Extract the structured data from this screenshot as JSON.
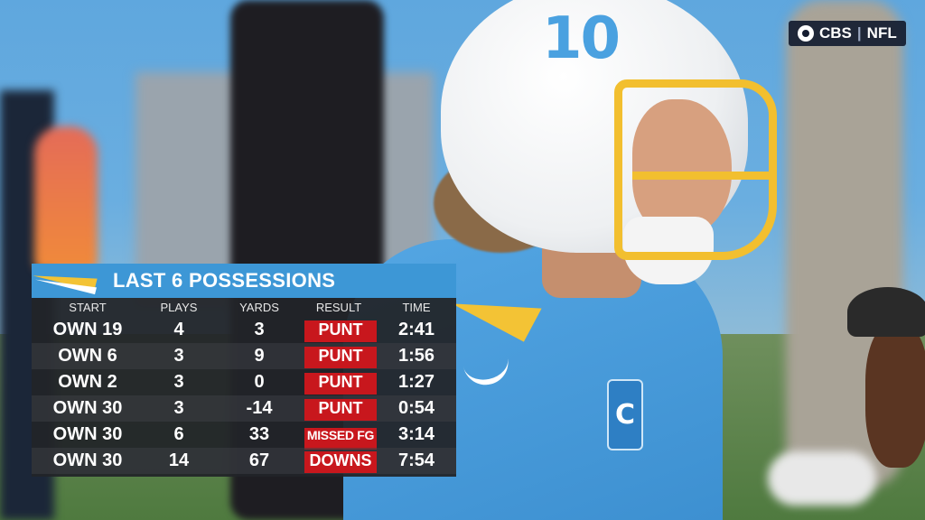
{
  "network": {
    "brand": "CBS",
    "separator": "|",
    "league": "NFL"
  },
  "player": {
    "helmet_number": "10",
    "patch_letter": "C"
  },
  "graphic": {
    "title": "LAST 6 POSSESSIONS",
    "columns": [
      "START",
      "PLAYS",
      "YARDS",
      "RESULT",
      "TIME"
    ],
    "rows": [
      {
        "start": "OWN 19",
        "plays": "4",
        "yards": "3",
        "result": "PUNT",
        "time": "2:41"
      },
      {
        "start": "OWN 6",
        "plays": "3",
        "yards": "9",
        "result": "PUNT",
        "time": "1:56"
      },
      {
        "start": "OWN 2",
        "plays": "3",
        "yards": "0",
        "result": "PUNT",
        "time": "1:27"
      },
      {
        "start": "OWN 30",
        "plays": "3",
        "yards": "-14",
        "result": "PUNT",
        "time": "0:54"
      },
      {
        "start": "OWN 30",
        "plays": "6",
        "yards": "33",
        "result": "MISSED FG",
        "time": "3:14"
      },
      {
        "start": "OWN 30",
        "plays": "14",
        "yards": "67",
        "result": "DOWNS",
        "time": "7:54"
      }
    ]
  },
  "colors": {
    "header_blue": "#3d97d6",
    "result_red": "#c8171d",
    "bolt_gold": "#f3c335",
    "panel_dark": "#222428"
  }
}
